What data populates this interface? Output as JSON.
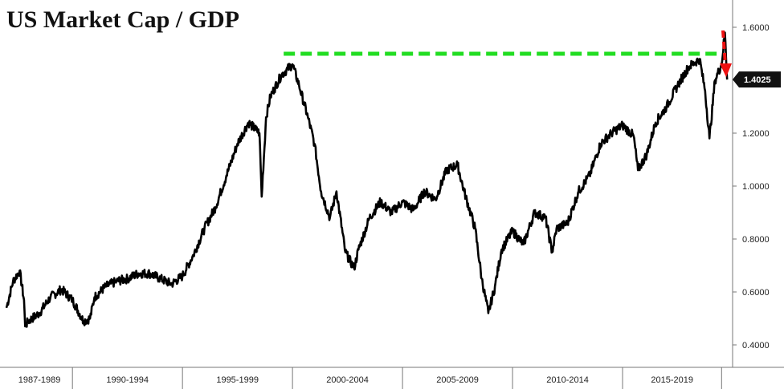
{
  "chart_data": {
    "type": "line",
    "title": "US Market Cap / GDP",
    "ylim": [
      0.35,
      1.65
    ],
    "yticks": [
      "1.6000",
      "1.4000",
      "1.2000",
      "1.0000",
      "0.8000",
      "0.6000",
      "0.4000"
    ],
    "ytick_values": [
      1.6,
      1.4,
      1.2,
      1.0,
      0.8,
      0.6,
      0.4
    ],
    "x_categories": [
      "1987-1989",
      "1990-1994",
      "1995-1999",
      "2000-2004",
      "2005-2009",
      "2010-2014",
      "2015-2019"
    ],
    "xlim": [
      1987.0,
      2020.0
    ],
    "x_category_bounds": [
      1987.0,
      1990.0,
      1995.0,
      2000.0,
      2005.0,
      2010.0,
      2015.0,
      2019.5
    ],
    "series": [
      {
        "color": "#000000",
        "x": [
          1987.0,
          1987.3,
          1987.6,
          1987.8,
          1987.85,
          1988.0,
          1988.5,
          1989.0,
          1989.5,
          1990.0,
          1990.5,
          1990.8,
          1991.0,
          1991.5,
          1992.0,
          1992.5,
          1993.0,
          1993.5,
          1994.0,
          1994.5,
          1995.0,
          1995.5,
          1996.0,
          1996.5,
          1997.0,
          1997.5,
          1998.0,
          1998.5,
          1998.6,
          1998.8,
          1999.0,
          1999.5,
          2000.0,
          2000.3,
          2000.7,
          2001.0,
          2001.3,
          2001.7,
          2002.0,
          2002.4,
          2002.8,
          2003.0,
          2003.5,
          2004.0,
          2004.5,
          2005.0,
          2005.5,
          2006.0,
          2006.5,
          2007.0,
          2007.5,
          2007.8,
          2008.3,
          2008.6,
          2008.9,
          2009.2,
          2009.5,
          2010.0,
          2010.5,
          2011.0,
          2011.5,
          2011.8,
          2012.0,
          2012.5,
          2013.0,
          2013.5,
          2014.0,
          2014.5,
          2015.0,
          2015.5,
          2015.7,
          2016.1,
          2016.5,
          2017.0,
          2017.5,
          2018.0,
          2018.5,
          2018.75,
          2018.95,
          2019.2,
          2019.5,
          2019.65,
          2019.75
        ],
        "values": [
          0.54,
          0.64,
          0.68,
          0.57,
          0.47,
          0.49,
          0.52,
          0.58,
          0.61,
          0.57,
          0.49,
          0.5,
          0.58,
          0.62,
          0.64,
          0.65,
          0.67,
          0.67,
          0.65,
          0.63,
          0.66,
          0.74,
          0.84,
          0.92,
          1.04,
          1.16,
          1.24,
          1.2,
          0.96,
          1.26,
          1.34,
          1.42,
          1.46,
          1.38,
          1.26,
          1.16,
          0.98,
          0.88,
          0.98,
          0.75,
          0.69,
          0.76,
          0.88,
          0.94,
          0.9,
          0.94,
          0.91,
          0.98,
          0.95,
          1.06,
          1.08,
          0.98,
          0.84,
          0.65,
          0.52,
          0.62,
          0.76,
          0.83,
          0.78,
          0.9,
          0.88,
          0.75,
          0.84,
          0.86,
          0.98,
          1.04,
          1.16,
          1.2,
          1.23,
          1.19,
          1.06,
          1.12,
          1.24,
          1.3,
          1.38,
          1.45,
          1.48,
          1.36,
          1.18,
          1.4,
          1.46,
          1.58,
          1.4025
        ]
      }
    ],
    "last_value_label": "1.4025",
    "reference_level": 1.5,
    "reference_x_start": 1999.6,
    "reference_color": "#22dd22",
    "arrow_color": "#ee1111",
    "grid": false,
    "legend": "none"
  }
}
